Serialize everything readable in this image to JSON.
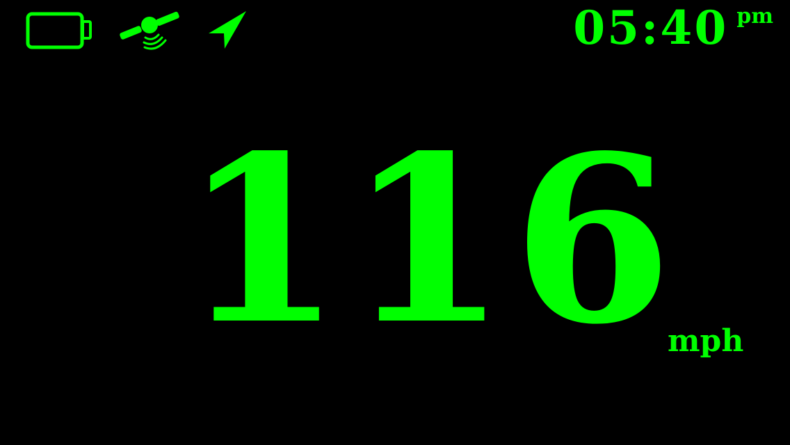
{
  "colors": {
    "background": "#000000",
    "accent": "#00ff00"
  },
  "status_bar": {
    "icons": [
      "battery-icon",
      "gps-satellite-icon",
      "location-arrow-icon"
    ],
    "clock": {
      "time": "05:40",
      "ampm": "pm"
    }
  },
  "speed": {
    "value": "116",
    "unit": "mph"
  }
}
